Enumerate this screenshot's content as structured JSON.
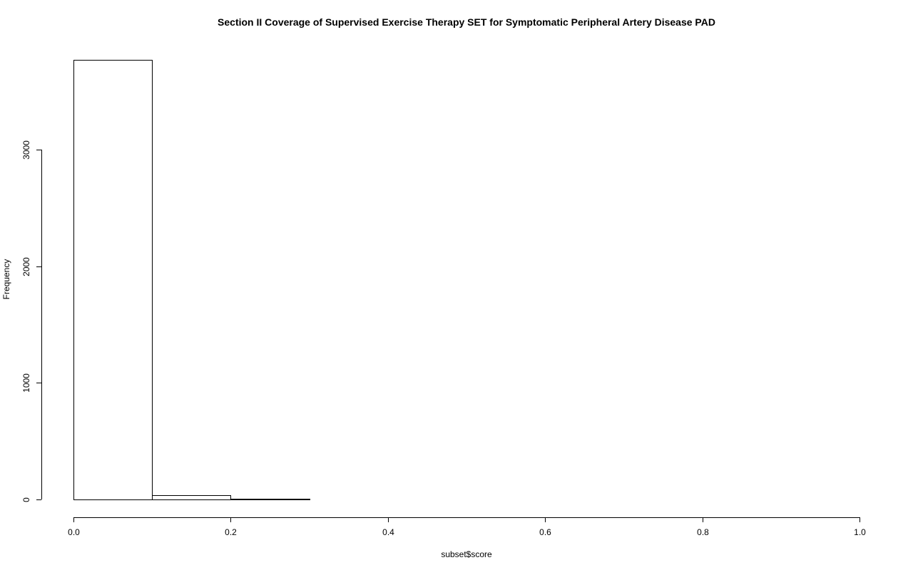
{
  "chart_data": {
    "type": "bar",
    "title": "Section II Coverage of Supervised Exercise Therapy SET for Symptomatic Peripheral Artery Disease PAD",
    "xlabel": "subset$score",
    "ylabel": "Frequency",
    "xlim": [
      0,
      1
    ],
    "ylim": [
      0,
      3770
    ],
    "bins": [
      {
        "start": 0.0,
        "end": 0.1,
        "count": 3770
      },
      {
        "start": 0.1,
        "end": 0.2,
        "count": 38
      },
      {
        "start": 0.2,
        "end": 0.3,
        "count": 6
      },
      {
        "start": 0.3,
        "end": 0.4,
        "count": 1
      },
      {
        "start": 0.4,
        "end": 0.5,
        "count": 1
      },
      {
        "start": 0.5,
        "end": 0.6,
        "count": 0
      },
      {
        "start": 0.6,
        "end": 0.7,
        "count": 1
      },
      {
        "start": 0.7,
        "end": 0.8,
        "count": 0
      },
      {
        "start": 0.8,
        "end": 0.9,
        "count": 0
      },
      {
        "start": 0.9,
        "end": 1.0,
        "count": 1
      }
    ],
    "x_ticks": [
      "0.0",
      "0.2",
      "0.4",
      "0.6",
      "0.8",
      "1.0"
    ],
    "y_ticks": [
      "0",
      "1000",
      "2000",
      "3000"
    ],
    "grid": false,
    "legend": "none"
  }
}
